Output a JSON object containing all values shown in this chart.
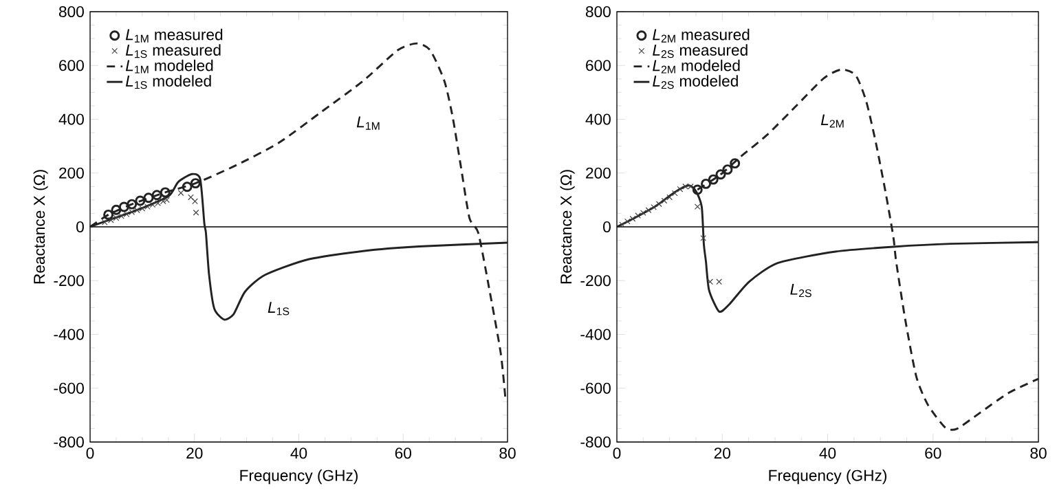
{
  "chart_data": [
    {
      "type": "line",
      "xlabel": "Frequency (GHz)",
      "ylabel": "Reactance X (Ω)",
      "xlim": [
        0,
        80
      ],
      "xticks": [
        0,
        20,
        40,
        60,
        80
      ],
      "ylim": [
        -800,
        800
      ],
      "yticks": [
        -800,
        -600,
        -400,
        -200,
        0,
        200,
        400,
        600,
        800
      ],
      "legend": "top left",
      "series": [
        {
          "name": "*L*$_{1M}$ measured",
          "type": "scatter",
          "marker": "circle",
          "color": "#222222",
          "x": [
            3.5,
            5,
            6.5,
            8,
            9.6,
            11.2,
            12.8,
            14.4,
            18.6,
            20.2
          ],
          "values": [
            45,
            63,
            74,
            84,
            97,
            108,
            118,
            128,
            149,
            162
          ]
        },
        {
          "name": "*L*$_{1S}$ measured",
          "type": "scatter",
          "marker": "cross",
          "color": "#444444",
          "x": [
            2.8,
            4,
            5,
            6,
            7,
            8,
            9,
            10,
            11,
            12,
            13,
            14,
            14.7,
            17.4,
            19.3,
            20.1,
            20.3
          ],
          "values": [
            17,
            25,
            33,
            40,
            47,
            55,
            62,
            68,
            75,
            82,
            88,
            95,
            100,
            126,
            110,
            95,
            53
          ]
        },
        {
          "name": "*L*$_{1M}$ modeled",
          "type": "line",
          "line_style": "dashed",
          "color": "#222222",
          "x": [
            0,
            3.5,
            8,
            14.4,
            20.2,
            28.1,
            36.2,
            44.3,
            52.3,
            58.9,
            62.6,
            65.2,
            67.9,
            69.5,
            71.1,
            72.7,
            74.4,
            76.5,
            78.7,
            79.6
          ],
          "values": [
            0,
            45,
            84,
            128,
            162,
            230,
            313,
            427,
            542,
            656,
            682,
            656,
            542,
            407,
            219,
            33,
            -23,
            -231,
            -470,
            -640
          ]
        },
        {
          "name": "*L*$_{1S}$ modeled",
          "type": "line",
          "line_style": "solid",
          "color": "#222222",
          "x": [
            0,
            5,
            10,
            15.1,
            16.9,
            19.5,
            21.1,
            21.9,
            22.2,
            22.8,
            23.8,
            25.7,
            27.5,
            29.7,
            33.5,
            41.6,
            52.3,
            63.1,
            80
          ],
          "values": [
            0,
            35,
            70,
            115,
            167,
            196,
            178,
            11,
            -23,
            -178,
            -304,
            -345,
            -325,
            -241,
            -179,
            -122,
            -90,
            -73,
            -59
          ]
        }
      ],
      "ref_lines": [
        {
          "axis": "y",
          "value": 0
        }
      ],
      "annotations": [
        "*L*$_{1M}$",
        "*L*$_{1S}$"
      ]
    },
    {
      "type": "line",
      "xlabel": "Frequency (GHz)",
      "ylabel": "Reactance X (Ω)",
      "xlim": [
        0,
        80
      ],
      "xticks": [
        0,
        20,
        40,
        60,
        80
      ],
      "ylim": [
        -800,
        800
      ],
      "yticks": [
        -800,
        -600,
        -400,
        -200,
        0,
        200,
        400,
        600,
        800
      ],
      "legend": "top left",
      "series": [
        {
          "name": "*L*$_{2M}$ measured",
          "type": "scatter",
          "marker": "circle",
          "color": "#222222",
          "x": [
            15.3,
            16.9,
            18.3,
            19.7,
            21,
            22.4
          ],
          "values": [
            138,
            160,
            176,
            195,
            213,
            236
          ]
        },
        {
          "name": "*L*$_{2S}$ measured",
          "type": "scatter",
          "marker": "cross",
          "color": "#444444",
          "x": [
            1,
            2,
            3,
            4,
            5,
            6,
            7,
            8,
            9,
            10,
            11,
            12,
            13,
            14,
            15.3,
            16.4,
            17.7,
            19.4
          ],
          "values": [
            8,
            20,
            30,
            42,
            52,
            62,
            73,
            85,
            97,
            110,
            125,
            140,
            150,
            150,
            75,
            -42,
            -204,
            -204
          ]
        },
        {
          "name": "*L*$_{2M}$ modeled",
          "type": "line",
          "line_style": "dashed",
          "color": "#222222",
          "x": [
            15.3,
            19.7,
            23.5,
            28.4,
            33.9,
            39.3,
            42.6,
            45.3,
            47.3,
            49.2,
            51.1,
            52.5,
            53,
            54.7,
            56.8,
            59,
            62.3,
            64.5,
            68.8,
            74.3,
            80
          ],
          "values": [
            138,
            195,
            261,
            340,
            447,
            553,
            585,
            564,
            468,
            308,
            117,
            -42,
            -129,
            -342,
            -555,
            -661,
            -746,
            -751,
            -693,
            -618,
            -565
          ]
        },
        {
          "name": "*L*$_{2S}$ modeled",
          "type": "line",
          "line_style": "solid",
          "color": "#222222",
          "x": [
            0,
            3.25,
            7.6,
            10.9,
            13.6,
            15,
            16.1,
            16.5,
            16.9,
            17.5,
            19.4,
            21.3,
            25.1,
            30.6,
            41.5,
            52.5,
            63.4,
            80
          ],
          "values": [
            0,
            32,
            80,
            128,
            154,
            133,
            75,
            -64,
            -129,
            -236,
            -315,
            -289,
            -204,
            -134,
            -92,
            -74,
            -63,
            -57
          ]
        }
      ],
      "ref_lines": [
        {
          "axis": "y",
          "value": 0
        }
      ],
      "annotations": [
        "*L*$_{2M}$",
        "*L*$_{2S}$"
      ]
    }
  ]
}
